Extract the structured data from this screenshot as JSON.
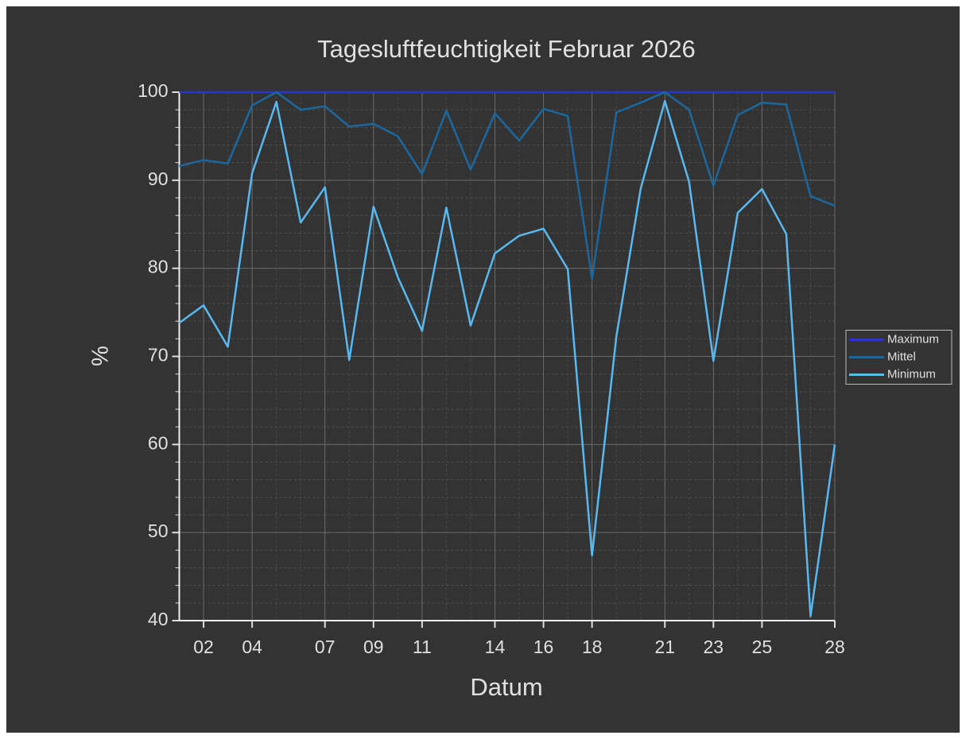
{
  "chart_data": {
    "type": "line",
    "title": "Tagesluftfeuchtigkeit Februar 2026",
    "xlabel": "Datum",
    "ylabel": "%",
    "x": [
      1,
      2,
      3,
      4,
      5,
      6,
      7,
      8,
      9,
      10,
      11,
      12,
      13,
      14,
      15,
      16,
      17,
      18,
      19,
      20,
      21,
      22,
      23,
      24,
      25,
      26,
      27,
      28
    ],
    "series": [
      {
        "name": "Maximum",
        "color": "#2a35d0",
        "values": [
          100,
          100,
          100,
          100,
          100,
          100,
          100,
          100,
          100,
          100,
          100,
          100,
          100,
          100,
          100,
          100,
          100,
          100,
          100,
          100,
          100,
          100,
          100,
          100,
          100,
          100,
          100,
          100
        ]
      },
      {
        "name": "Mittel",
        "color": "#1b68a0",
        "values": [
          91.6,
          92.3,
          91.9,
          98.5,
          100,
          98.0,
          98.4,
          96.1,
          96.4,
          95.0,
          90.7,
          97.9,
          91.2,
          97.6,
          94.5,
          98.1,
          97.3,
          78.8,
          97.7,
          98.8,
          100,
          98.0,
          89.4,
          97.4,
          98.8,
          98.6,
          88.2,
          87.1
        ]
      },
      {
        "name": "Minimum",
        "color": "#58b9f0",
        "values": [
          73.8,
          75.8,
          71.1,
          90.8,
          98.9,
          85.2,
          89.2,
          69.6,
          87.0,
          79.0,
          72.9,
          86.9,
          73.5,
          81.7,
          83.7,
          84.5,
          79.9,
          47.4,
          72.2,
          89.0,
          99.0,
          89.8,
          69.5,
          86.3,
          89.0,
          83.9,
          40.5,
          60.0
        ]
      }
    ],
    "xlim": [
      1,
      28
    ],
    "xticks": [
      {
        "value": 2,
        "label": "02"
      },
      {
        "value": 4,
        "label": "04"
      },
      {
        "value": 7,
        "label": "07"
      },
      {
        "value": 9,
        "label": "09"
      },
      11,
      14,
      16,
      18,
      21,
      23,
      25,
      28
    ],
    "ylim": [
      40,
      100
    ],
    "yticks": [
      40,
      50,
      60,
      70,
      80,
      90,
      100
    ],
    "grid": true,
    "legend": "right"
  }
}
